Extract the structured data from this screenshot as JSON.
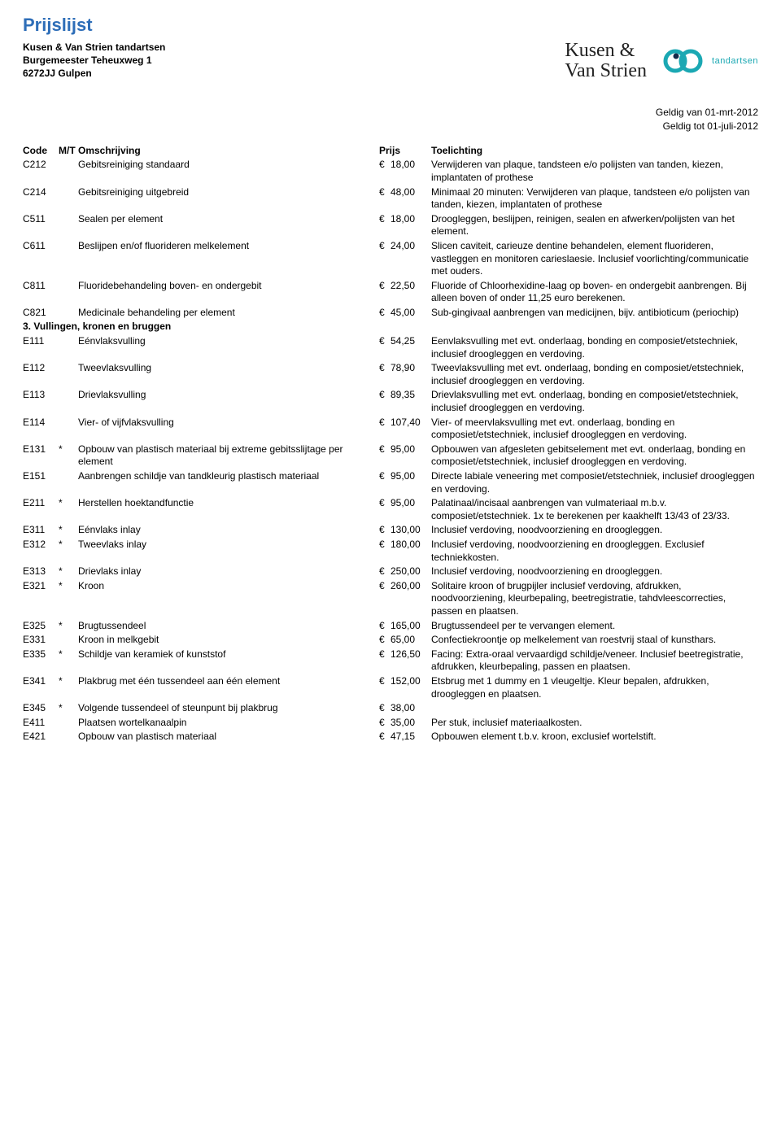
{
  "title": "Prijslijst",
  "org": {
    "name": "Kusen & Van Strien tandartsen",
    "street": "Burgemeester Teheuxweg 1",
    "city": "6272JJ Gulpen"
  },
  "logo1": {
    "line1": "Kusen &",
    "line2": "Van Strien"
  },
  "logo2": {
    "label": "tandartsen",
    "ring_color": "#1ba8b3",
    "dot_color": "#162a4a"
  },
  "validity": {
    "from": "Geldig van 01-mrt-2012",
    "to": "Geldig tot  01-juli-2012"
  },
  "columns": {
    "code": "Code",
    "mt": "M/T",
    "desc": "Omschrijving",
    "price": "Prijs",
    "note": "Toelichting"
  },
  "currency": "€",
  "section_heading": "3. Vullingen, kronen en bruggen",
  "rows1": [
    {
      "code": "C212",
      "mt": "",
      "desc": "Gebitsreiniging standaard",
      "price": "18,00",
      "note": "Verwijderen van plaque, tandsteen e/o polijsten van tanden, kiezen, implantaten of prothese"
    },
    {
      "code": "C214",
      "mt": "",
      "desc": "Gebitsreiniging uitgebreid",
      "price": "48,00",
      "note": "Minimaal 20 minuten: Verwijderen van plaque, tandsteen e/o polijsten van tanden, kiezen, implantaten of prothese"
    },
    {
      "code": "C511",
      "mt": "",
      "desc": "Sealen per element",
      "price": "18,00",
      "note": "Droogleggen, beslijpen, reinigen, sealen en afwerken/polijsten van het element."
    },
    {
      "code": "C611",
      "mt": "",
      "desc": "Beslijpen en/of fluorideren melkelement",
      "price": "24,00",
      "note": "Slicen caviteit, carieuze dentine behandelen, element fluorideren, vastleggen en monitoren carieslaesie. Inclusief voorlichting/communicatie met ouders."
    },
    {
      "code": "C811",
      "mt": "",
      "desc": "Fluoridebehandeling boven- en ondergebit",
      "price": "22,50",
      "note": "Fluoride of Chloorhexidine-laag op boven- en ondergebit aanbrengen. Bij alleen boven of onder 11,25 euro berekenen."
    },
    {
      "code": "C821",
      "mt": "",
      "desc": "Medicinale behandeling per element",
      "price": "45,00",
      "note": "Sub-gingivaal aanbrengen van medicijnen, bijv. antibioticum (periochip)"
    }
  ],
  "rows2": [
    {
      "code": "E111",
      "mt": "",
      "desc": "Eénvlaksvulling",
      "price": "54,25",
      "note": "Eenvlaksvulling met evt. onderlaag, bonding en composiet/etstechniek, inclusief droogleggen en verdoving."
    },
    {
      "code": "E112",
      "mt": "",
      "desc": "Tweevlaksvulling",
      "price": "78,90",
      "note": "Tweevlaksvulling met evt. onderlaag, bonding en composiet/etstechniek, inclusief droogleggen en verdoving."
    },
    {
      "code": "E113",
      "mt": "",
      "desc": "Drievlaksvulling",
      "price": "89,35",
      "note": "Drievlaksvulling met evt. onderlaag, bonding en composiet/etstechniek, inclusief droogleggen en verdoving."
    },
    {
      "code": "E114",
      "mt": "",
      "desc": "Vier- of vijfvlaksvulling",
      "price": "107,40",
      "note": "Vier- of meervlaksvulling met evt. onderlaag, bonding en composiet/etstechniek, inclusief droogleggen en verdoving."
    },
    {
      "code": "E131",
      "mt": "*",
      "desc": "Opbouw van plastisch materiaal bij extreme gebitsslijtage per element",
      "price": "95,00",
      "note": "Opbouwen van afgesleten gebitselement met evt. onderlaag, bonding en composiet/etstechniek, inclusief droogleggen en verdoving."
    },
    {
      "code": "E151",
      "mt": "",
      "desc": "Aanbrengen schildje van tandkleurig plastisch materiaal",
      "price": "95,00",
      "note": "Directe labiale veneering met composiet/etstechniek, inclusief droogleggen en verdoving."
    },
    {
      "code": "E211",
      "mt": "*",
      "desc": "Herstellen hoektandfunctie",
      "price": "95,00",
      "note": "Palatinaal/incisaal aanbrengen van vulmateriaal m.b.v. composiet/etstechniek. 1x te berekenen per kaakhelft 13/43 of 23/33."
    },
    {
      "code": "E311",
      "mt": "*",
      "desc": "Eénvlaks inlay",
      "price": "130,00",
      "note": "Inclusief verdoving, noodvoorziening en droogleggen."
    },
    {
      "code": "E312",
      "mt": "*",
      "desc": "Tweevlaks inlay",
      "price": "180,00",
      "note": "Inclusief verdoving, noodvoorziening en droogleggen. Exclusief techniekkosten."
    },
    {
      "code": "E313",
      "mt": "*",
      "desc": "Drievlaks inlay",
      "price": "250,00",
      "note": "Inclusief verdoving, noodvoorziening en droogleggen."
    },
    {
      "code": "E321",
      "mt": "*",
      "desc": "Kroon",
      "price": "260,00",
      "note": "Solitaire kroon of brugpijler inclusief verdoving, afdrukken, noodvoorziening, kleurbepaling, beetregistratie, tahdvleescorrecties, passen en plaatsen."
    },
    {
      "code": "E325",
      "mt": "*",
      "desc": "Brugtussendeel",
      "price": "165,00",
      "note": "Brugtussendeel per te vervangen element."
    },
    {
      "code": "E331",
      "mt": "",
      "desc": "Kroon in melkgebit",
      "price": "65,00",
      "note": "Confectiekroontje op melkelement van roestvrij staal of kunsthars."
    },
    {
      "code": "E335",
      "mt": "*",
      "desc": "Schildje van keramiek of kunststof",
      "price": "126,50",
      "note": "Facing: Extra-oraal vervaardigd schildje/veneer. Inclusief beetregistratie, afdrukken, kleurbepaling, passen en plaatsen."
    },
    {
      "code": "E341",
      "mt": "*",
      "desc": "Plakbrug met één tussendeel aan één element",
      "price": "152,00",
      "note": "Etsbrug met 1 dummy en 1 vleugeltje. Kleur bepalen, afdrukken, droogleggen en plaatsen."
    },
    {
      "code": "E345",
      "mt": "*",
      "desc": "Volgende tussendeel of steunpunt bij plakbrug",
      "price": "38,00",
      "note": ""
    },
    {
      "code": "E411",
      "mt": "",
      "desc": "Plaatsen wortelkanaalpin",
      "price": "35,00",
      "note": "Per stuk, inclusief materiaalkosten."
    },
    {
      "code": "E421",
      "mt": "",
      "desc": "Opbouw van plastisch materiaal",
      "price": "47,15",
      "note": "Opbouwen element t.b.v. kroon, exclusief wortelstift."
    }
  ]
}
